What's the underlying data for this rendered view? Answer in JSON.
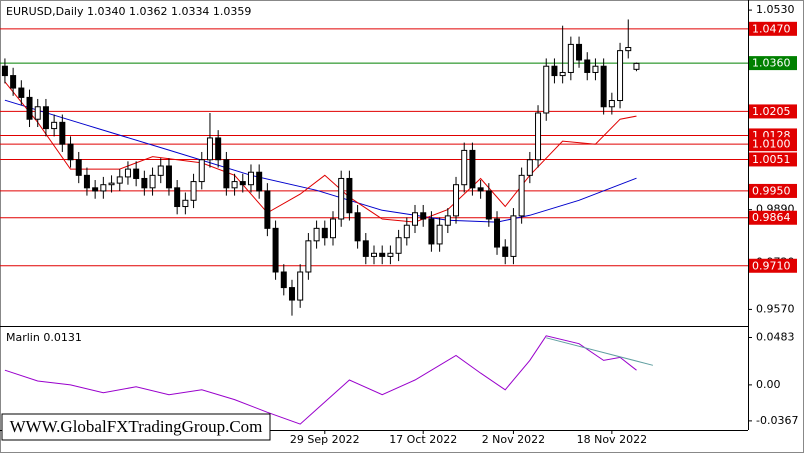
{
  "chart_data": {
    "type": "candlestick",
    "title": "EURUSD,Daily  1.0340 1.0362 1.0334 1.0359",
    "watermark": "WWW.GlobalFXTradingGroup.Com",
    "ylim": [
      0.952,
      1.0556
    ],
    "yticks": [
      {
        "value": 1.053,
        "label": "1.0530"
      },
      {
        "value": 0.989,
        "label": "0.9890"
      },
      {
        "value": 0.972,
        "label": "0.9720"
      },
      {
        "value": 0.957,
        "label": "0.9570"
      }
    ],
    "xlim": [
      -0.6,
      90.6
    ],
    "xlabels": [
      {
        "index": 39,
        "label": "29 Sep 2022"
      },
      {
        "index": 51,
        "label": "17 Oct 2022"
      },
      {
        "index": 62,
        "label": "2 Nov 2022"
      },
      {
        "index": 74,
        "label": "18 Nov 2022"
      }
    ],
    "bull_color": "#ffffff",
    "bear_color": "#000000",
    "open": [
      1.035,
      1.032,
      1.028,
      1.025,
      1.018,
      1.022,
      1.015,
      1.017,
      1.01,
      1.005,
      1.0,
      0.996,
      0.995,
      0.997,
      0.9975,
      0.9995,
      1.002,
      0.999,
      0.996,
      1.0,
      1.003,
      0.996,
      0.99,
      0.992,
      0.998,
      1.005,
      1.012,
      1.005,
      0.996,
      0.998,
      0.997,
      1.001,
      0.995,
      0.983,
      0.969,
      0.964,
      0.96,
      0.969,
      0.979,
      0.983,
      0.98,
      0.986,
      0.999,
      0.988,
      0.979,
      0.974,
      0.975,
      0.974,
      0.975,
      0.98,
      0.984,
      0.988,
      0.986,
      0.978,
      0.984,
      0.987,
      0.997,
      1.008,
      0.996,
      0.995,
      0.986,
      0.977,
      0.974,
      0.987,
      1.0,
      1.005,
      1.02,
      1.035,
      1.032,
      1.033,
      1.042,
      1.037,
      1.033,
      1.035,
      1.022,
      1.024,
      1.04,
      1.034
    ],
    "high": [
      1.0375,
      1.0345,
      1.0305,
      1.0275,
      1.0245,
      1.0245,
      1.0195,
      1.0195,
      1.0125,
      1.0075,
      1.0025,
      0.9985,
      0.9995,
      1.0,
      1.002,
      1.0045,
      1.0045,
      1.0015,
      1.0025,
      1.0055,
      1.0055,
      0.9985,
      0.9945,
      1.0005,
      1.0075,
      1.02,
      1.0145,
      1.0075,
      1.0005,
      1.0005,
      1.0035,
      1.0035,
      0.9975,
      0.9855,
      0.9715,
      0.9665,
      0.9715,
      0.9815,
      0.9855,
      0.9855,
      0.9885,
      1.0015,
      1.0015,
      0.9905,
      0.9815,
      0.9775,
      0.9775,
      0.9775,
      0.9825,
      0.9865,
      0.9905,
      0.9905,
      0.9885,
      0.9865,
      0.9895,
      0.9995,
      1.0105,
      1.0105,
      0.9985,
      0.9975,
      0.9885,
      0.9795,
      0.9895,
      1.0025,
      1.0075,
      1.0225,
      1.0375,
      1.0375,
      1.048,
      1.0445,
      1.0445,
      1.0395,
      1.0375,
      1.0375,
      1.0265,
      1.0425,
      1.05,
      1.0362
    ],
    "low": [
      1.0295,
      1.0255,
      1.0225,
      1.0155,
      1.0155,
      1.0125,
      1.0125,
      1.0075,
      1.0025,
      0.9975,
      0.9935,
      0.9925,
      0.9925,
      0.9945,
      0.995,
      0.997,
      0.9965,
      0.9935,
      0.9935,
      0.9975,
      0.9935,
      0.9875,
      0.9875,
      0.9895,
      0.9955,
      1.0025,
      1.0025,
      0.9935,
      0.9935,
      0.9945,
      0.9945,
      0.9925,
      0.9805,
      0.9665,
      0.9615,
      0.955,
      0.9575,
      0.9665,
      0.9765,
      0.9775,
      0.9775,
      0.9835,
      0.9855,
      0.9765,
      0.9715,
      0.9715,
      0.9715,
      0.9715,
      0.9725,
      0.9775,
      0.9815,
      0.9835,
      0.9755,
      0.9755,
      0.9815,
      0.9845,
      0.9945,
      0.9935,
      0.9925,
      0.9835,
      0.9745,
      0.9715,
      0.9715,
      0.9845,
      0.9975,
      1.0025,
      1.0175,
      1.0295,
      1.0295,
      1.0305,
      1.0345,
      1.0305,
      1.0305,
      1.0195,
      1.0195,
      1.0215,
      1.0375,
      1.0334
    ],
    "close": [
      1.032,
      1.028,
      1.025,
      1.018,
      1.022,
      1.015,
      1.017,
      1.01,
      1.005,
      1.0,
      0.996,
      0.995,
      0.997,
      0.9975,
      0.9995,
      1.002,
      0.999,
      0.996,
      1.0,
      1.003,
      0.996,
      0.99,
      0.992,
      0.998,
      1.005,
      1.012,
      1.005,
      0.996,
      0.998,
      0.997,
      1.001,
      0.995,
      0.983,
      0.969,
      0.964,
      0.96,
      0.969,
      0.979,
      0.983,
      0.98,
      0.986,
      0.999,
      0.988,
      0.979,
      0.974,
      0.975,
      0.974,
      0.975,
      0.98,
      0.984,
      0.988,
      0.986,
      0.978,
      0.984,
      0.987,
      0.997,
      1.008,
      0.996,
      0.995,
      0.986,
      0.977,
      0.974,
      0.987,
      1.0,
      1.005,
      1.02,
      1.035,
      1.032,
      1.033,
      1.042,
      1.037,
      1.033,
      1.035,
      1.022,
      1.024,
      1.04,
      1.041,
      1.0359
    ],
    "series": [
      {
        "color": "#0000cc",
        "x": [
          0,
          10,
          20,
          30,
          38,
          46,
          54,
          60,
          64,
          70,
          77
        ],
        "values": [
          1.0241,
          1.0161,
          1.0081,
          1.0,
          0.9952,
          0.9888,
          0.9856,
          0.985,
          0.9872,
          0.992,
          0.9991
        ]
      },
      {
        "color": "#e00000",
        "x": [
          0,
          4,
          8,
          14,
          18,
          24,
          28,
          32,
          36,
          39,
          42,
          46,
          50,
          54,
          58,
          61,
          64,
          68,
          72,
          75,
          77
        ],
        "values": [
          1.03,
          1.017,
          1.002,
          1.002,
          1.006,
          1.004,
          1.0,
          0.988,
          0.994,
          1.0,
          0.993,
          0.986,
          0.985,
          0.989,
          0.999,
          0.99,
          1.0,
          1.011,
          1.01,
          1.018,
          1.019
        ]
      }
    ],
    "levels": [
      {
        "value": 1.047,
        "label": "1.0470",
        "color": "#e00000"
      },
      {
        "value": 1.036,
        "label": "1.0360",
        "color": "#008000"
      },
      {
        "value": 1.0205,
        "color": "#e00000"
      },
      {
        "value": 1.0128,
        "color": "#e00000"
      },
      {
        "value": 1.01,
        "label": "1.0100",
        "color": "#e00000"
      },
      {
        "value": 1.0051,
        "color": "#e00000"
      },
      {
        "value": 0.995,
        "label": "0.9950",
        "color": "#e00000"
      },
      {
        "value": 0.9864,
        "color": "#e00000"
      },
      {
        "value": 0.971,
        "label": "0.9710",
        "color": "#e00000"
      }
    ],
    "indicator": {
      "title": "Marlin 0.0131",
      "color": "#9900cc",
      "ylim": [
        -0.046,
        0.058
      ],
      "yticks": [
        0.0483,
        {
          "value": 0,
          "label": "0.00"
        },
        -0.0367
      ],
      "x": [
        0,
        4,
        8,
        12,
        16,
        20,
        24,
        28,
        32,
        36,
        38,
        42,
        46,
        50,
        55,
        58,
        61,
        64,
        66,
        70,
        73,
        75,
        77
      ],
      "values": [
        0.015,
        0.004,
        0.0,
        -0.008,
        -0.002,
        -0.01,
        -0.005,
        -0.015,
        -0.028,
        -0.04,
        -0.025,
        0.005,
        -0.01,
        0.005,
        0.03,
        0.012,
        -0.005,
        0.025,
        0.05,
        0.042,
        0.025,
        0.028,
        0.015
      ],
      "trendline": {
        "color": "#5f9ea0",
        "x": [
          66,
          79
        ],
        "values": [
          0.048,
          0.02
        ]
      }
    }
  }
}
